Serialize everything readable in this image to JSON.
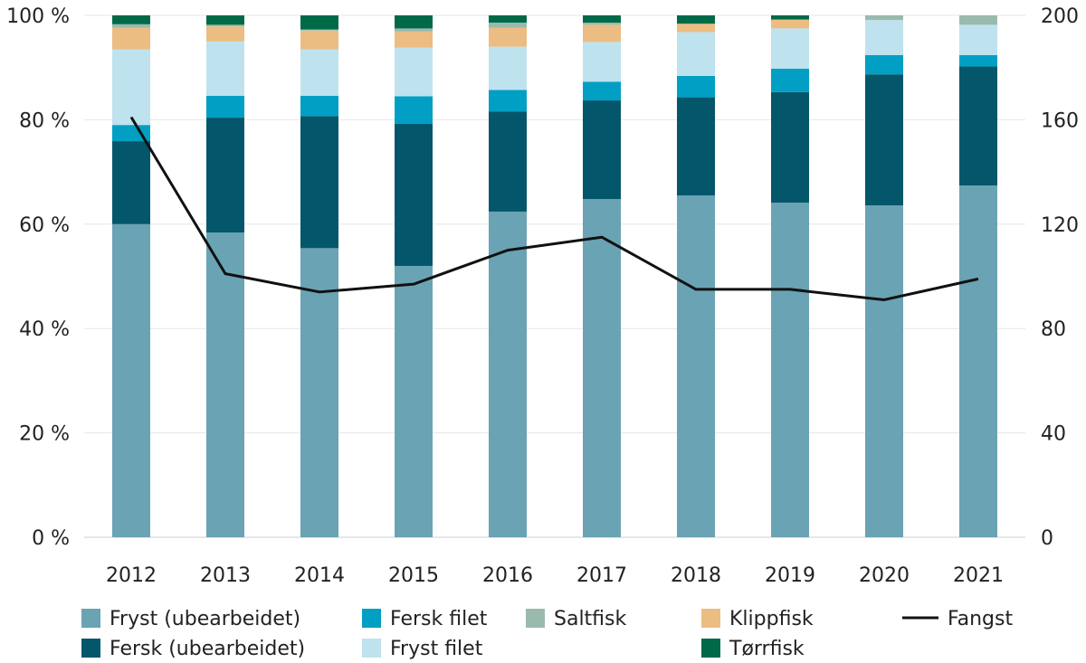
{
  "chart_data": {
    "type": "bar",
    "stacked": true,
    "categories": [
      "2012",
      "2013",
      "2014",
      "2015",
      "2016",
      "2017",
      "2018",
      "2019",
      "2020",
      "2021"
    ],
    "y_left": {
      "range": [
        0,
        100
      ],
      "ticks": [
        0,
        20,
        40,
        60,
        80,
        100
      ],
      "tick_labels": [
        "0 %",
        "20 %",
        "40 %",
        "60 %",
        "80 %",
        "100 %"
      ]
    },
    "y_right": {
      "range": [
        0,
        200
      ],
      "ticks": [
        0,
        40,
        80,
        120,
        160,
        200
      ],
      "tick_labels": [
        "0",
        "40",
        "80",
        "120",
        "160",
        "200"
      ]
    },
    "grid": true,
    "legend_placement": "bottom",
    "series": [
      {
        "name": "Fryst (ubearbeidet)",
        "color": "#6aa3b4",
        "values": [
          60.0,
          58.4,
          55.4,
          52.0,
          62.4,
          64.8,
          65.5,
          64.1,
          63.6,
          67.4
        ]
      },
      {
        "name": "Fersk (ubearbeidet)",
        "color": "#04566b",
        "values": [
          15.9,
          22.0,
          25.3,
          27.2,
          19.2,
          18.9,
          18.8,
          21.2,
          25.1,
          22.8
        ]
      },
      {
        "name": "Fersk filet",
        "color": "#009fc3",
        "values": [
          3.1,
          4.2,
          3.9,
          5.3,
          4.1,
          3.6,
          4.1,
          4.5,
          3.7,
          2.2
        ]
      },
      {
        "name": "Fryst filet",
        "color": "#bfe2ef",
        "values": [
          14.5,
          10.4,
          8.9,
          9.3,
          8.3,
          7.6,
          8.4,
          7.7,
          6.7,
          5.8
        ]
      },
      {
        "name": "Klippfisk",
        "color": "#ebbd82",
        "values": [
          4.1,
          2.9,
          3.6,
          3.1,
          3.6,
          3.3,
          1.6,
          1.7,
          0,
          0
        ]
      },
      {
        "name": "Saltfisk",
        "color": "#9bbaae",
        "values": [
          0.7,
          0.3,
          0.2,
          0.6,
          1.0,
          0.4,
          0,
          0,
          0.9,
          1.8
        ]
      },
      {
        "name": "Tørrfisk",
        "color": "#006a48",
        "values": [
          1.7,
          1.8,
          2.7,
          2.5,
          1.4,
          1.4,
          1.6,
          0.8,
          0,
          0
        ]
      }
    ],
    "line_series": {
      "name": "Fangst",
      "color": "#111111",
      "axis": "right",
      "values": [
        161,
        101,
        94,
        97,
        110,
        115,
        95,
        95,
        91,
        99
      ]
    },
    "legend": [
      {
        "name": "Fryst (ubearbeidet)",
        "color": "#6aa3b4",
        "kind": "box"
      },
      {
        "name": "Fersk (ubearbeidet)",
        "color": "#04566b",
        "kind": "box"
      },
      {
        "name": "Fersk filet",
        "color": "#009fc3",
        "kind": "box"
      },
      {
        "name": "Fryst filet",
        "color": "#bfe2ef",
        "kind": "box"
      },
      {
        "name": "Saltfisk",
        "color": "#9bbaae",
        "kind": "box"
      },
      {
        "name": "Klippfisk",
        "color": "#ebbd82",
        "kind": "box"
      },
      {
        "name": "Tørrfisk",
        "color": "#006a48",
        "kind": "box"
      },
      {
        "name": "Fangst",
        "color": "#111111",
        "kind": "line"
      }
    ]
  }
}
